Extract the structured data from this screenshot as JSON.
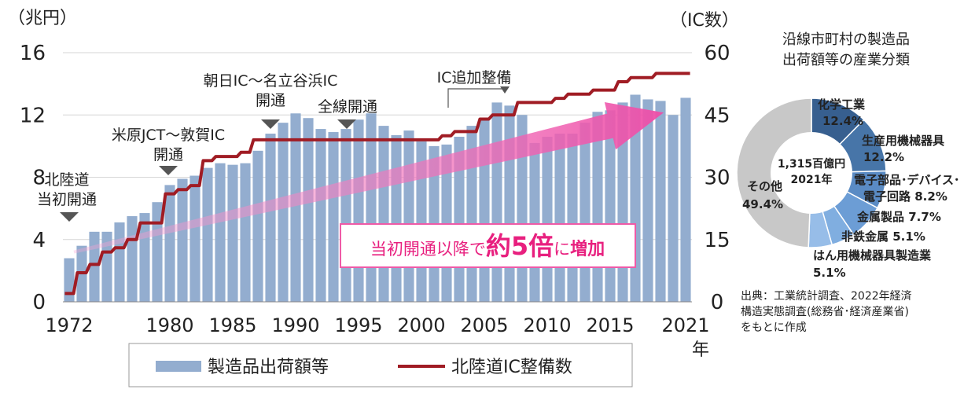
{
  "chart_data": [
    {
      "type": "bar",
      "title": "",
      "xlabel": "年",
      "ylabel": "（兆円）",
      "ylabel_right": "（IC数）",
      "ylim": [
        0,
        16
      ],
      "ylim_right": [
        0,
        60
      ],
      "y_ticks": [
        "0",
        "4",
        "8",
        "12",
        "16"
      ],
      "y_ticks_right": [
        "0",
        "15",
        "30",
        "45",
        "60"
      ],
      "x_tick_labels": [
        "1972",
        "1980",
        "1985",
        "1990",
        "1995",
        "2000",
        "2005",
        "2010",
        "2015",
        "2021"
      ],
      "x_tick_years": [
        1972,
        1980,
        1985,
        1990,
        1995,
        2000,
        2005,
        2010,
        2015,
        2021
      ],
      "x": [
        1972,
        1973,
        1974,
        1975,
        1976,
        1977,
        1978,
        1979,
        1980,
        1981,
        1982,
        1983,
        1984,
        1985,
        1986,
        1987,
        1988,
        1989,
        1990,
        1991,
        1992,
        1993,
        1994,
        1995,
        1996,
        1997,
        1998,
        1999,
        2000,
        2001,
        2002,
        2003,
        2004,
        2005,
        2006,
        2007,
        2008,
        2009,
        2010,
        2011,
        2012,
        2013,
        2014,
        2015,
        2016,
        2017,
        2018,
        2019,
        2020,
        2021
      ],
      "series": [
        {
          "name": "製造品出荷額等",
          "axis": "left",
          "values": [
            2.8,
            3.6,
            4.5,
            4.5,
            5.1,
            5.5,
            5.7,
            6.4,
            7.5,
            7.9,
            8.1,
            8.6,
            8.9,
            8.8,
            8.9,
            9.7,
            10.8,
            11.5,
            12.1,
            11.8,
            11.1,
            10.9,
            11.1,
            11.7,
            12.1,
            11.3,
            10.7,
            11.0,
            10.3,
            10.0,
            10.1,
            10.6,
            11.3,
            11.8,
            12.8,
            12.6,
            12.0,
            10.2,
            10.6,
            10.8,
            10.8,
            11.5,
            12.2,
            12.3,
            12.8,
            13.3,
            13.0,
            12.9,
            12.0,
            13.1
          ]
        },
        {
          "name": "北陸道IC整備数",
          "axis": "right",
          "values": [
            2,
            7,
            9,
            12,
            13,
            15,
            19,
            19,
            26,
            27,
            28,
            34,
            35,
            35,
            36,
            39,
            39,
            39,
            39,
            39,
            39,
            39,
            39,
            39,
            39,
            39,
            39,
            39,
            39,
            39,
            40,
            41,
            41,
            44,
            45,
            45,
            48,
            48,
            48,
            49,
            50,
            50,
            51,
            51,
            53,
            54,
            54,
            55,
            55,
            55
          ]
        }
      ],
      "legend": "bottom",
      "annotations": [
        {
          "lines": [
            "北陸道",
            "当初開通"
          ],
          "year": 1972
        },
        {
          "lines": [
            "米原JCT～敦賀IC",
            "開通"
          ],
          "year": 1979
        },
        {
          "lines": [
            "朝日IC～名立谷浜IC",
            "開通"
          ],
          "year": 1987
        },
        {
          "lines": [
            "全線開通"
          ],
          "year": 1993
        },
        {
          "lines": [
            "IC追加整備"
          ],
          "year": 2006
        }
      ],
      "trend_callout": {
        "prefix": "当初開通以降で",
        "emphasis": "約5倍",
        "particle": "に",
        "suffix": "増加"
      }
    },
    {
      "type": "pie",
      "title": "沿線市町村の製造品出荷額等の産業分類",
      "title_lines": [
        "沿線市町村の製造品",
        "出荷額等の産業分類"
      ],
      "center_label": [
        "1,315百億円",
        "2021年"
      ],
      "slices": [
        {
          "label": "化学工業",
          "value_label": "12.4%",
          "value": 12.4,
          "color": "#375f8f",
          "label_color": "#ffffff"
        },
        {
          "label": "生産用機械器具",
          "value_label": "12.2%",
          "value": 12.2,
          "color": "#4775a8",
          "label_color": "#111111"
        },
        {
          "label": "電子部品･デバイス･",
          "label2": "電子回路",
          "value_label": "8.2%",
          "value": 8.2,
          "color": "#5a8bc4",
          "label_color": "#111111"
        },
        {
          "label": "金属製品",
          "value_label": "7.7%",
          "value": 7.7,
          "color": "#6c9dd5",
          "label_color": "#111111"
        },
        {
          "label": "非鉄金属",
          "value_label": "5.1%",
          "value": 5.1,
          "color": "#80aee0",
          "label_color": "#111111"
        },
        {
          "label": "はん用機械器具製造業",
          "value_label": "5.1%",
          "value": 5.1,
          "color": "#97bde8",
          "label_color": "#111111"
        },
        {
          "label": "その他",
          "value_label": "49.4%",
          "value": 49.4,
          "color": "#c8c8c8",
          "label_color": "#111111"
        }
      ]
    }
  ],
  "colors": {
    "bar": "#93adcf",
    "line": "#a01c24",
    "grid": "#d6d6d6",
    "trend_arrow": "#f06ab4",
    "callout_border": "#ef5aa7",
    "callout_text": "#e8207f"
  },
  "source": {
    "lines": [
      "出典：工業統計調査、2022年経済",
      "構造実態調査(総務省･経済産業省)",
      "をもとに作成"
    ]
  }
}
